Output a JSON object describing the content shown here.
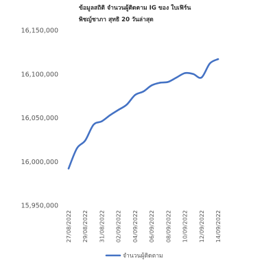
{
  "chart_data": {
    "type": "line",
    "title_lines": [
      "ข้อมูลสถิติ จำนวนผู้ติดตาม IG ของ ใบเฟิร์น",
      "พิชญ์ชาภา สุทธิ 20 วันล่าสุด"
    ],
    "x": [
      "27/08/2022",
      "28/08/2022",
      "29/08/2022",
      "30/08/2022",
      "31/08/2022",
      "01/09/2022",
      "02/09/2022",
      "03/09/2022",
      "04/09/2022",
      "05/09/2022",
      "06/09/2022",
      "07/09/2022",
      "08/09/2022",
      "09/09/2022",
      "10/09/2022",
      "11/09/2022",
      "12/09/2022",
      "13/09/2022",
      "14/09/2022"
    ],
    "x_tick_labels": [
      "27/08/2022",
      "29/08/2022",
      "31/08/2022",
      "02/09/2022",
      "04/09/2022",
      "06/09/2022",
      "08/09/2022",
      "10/09/2022",
      "12/09/2022",
      "14/09/2022"
    ],
    "series": [
      {
        "name": "จำนวนผู้ติดตาม",
        "color": "#4472c4",
        "values": [
          15992000,
          16015000,
          16024000,
          16042000,
          16046000,
          16053000,
          16059000,
          16065000,
          16076000,
          16080000,
          16087000,
          16090000,
          16091000,
          16096000,
          16101000,
          16100000,
          16096000,
          16112000,
          16117000
        ]
      }
    ],
    "y_tick_labels": [
      "15,950,000",
      "16,000,000",
      "16,050,000",
      "16,100,000",
      "16,150,000"
    ],
    "y_ticks": [
      15950000,
      16000000,
      16050000,
      16100000,
      16150000
    ],
    "ylim": [
      15950000,
      16150000
    ],
    "grid": false,
    "legend_position": "bottom"
  }
}
